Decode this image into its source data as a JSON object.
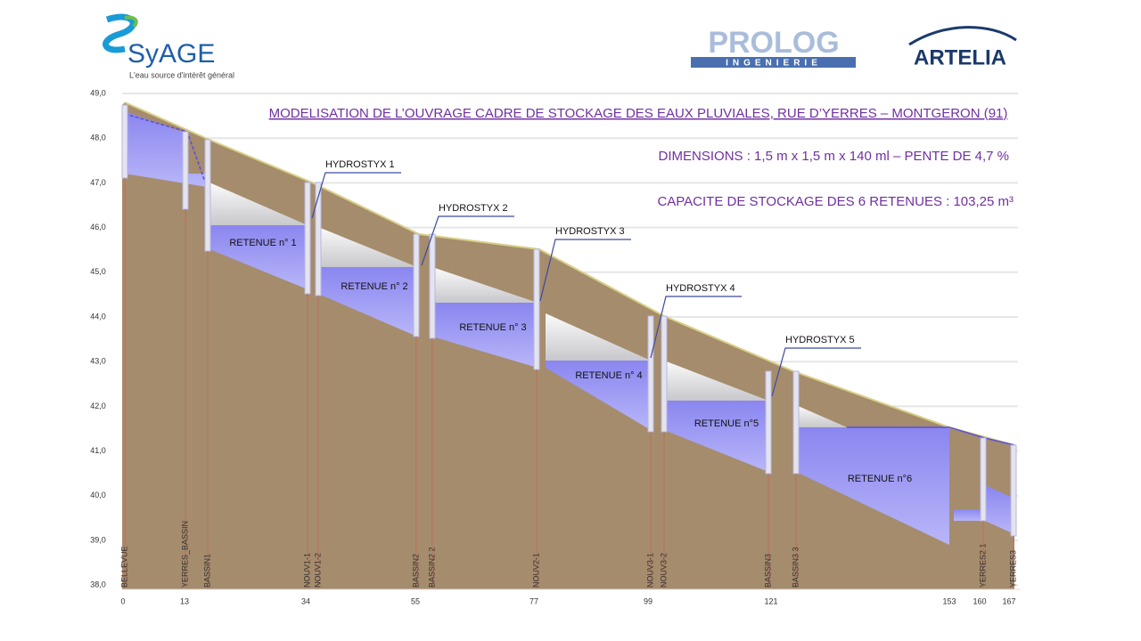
{
  "header": {
    "syage": {
      "name": "SyAGE",
      "tagline": "L'eau source d'intérêt général"
    },
    "prolog": {
      "name": "PROLOG",
      "sub": "INGENIERIE"
    },
    "artelia": {
      "name": "ARTELIA"
    }
  },
  "titles": [
    "MODELISATION DE L’OUVRAGE CADRE DE STOCKAGE DES EAUX PLUVIALES, RUE D’YERRES – MONTGERON (91)",
    "DIMENSIONS : 1,5 m x 1,5 m x 140 ml – PENTE DE 4,7 %",
    "CAPACITE DE STOCKAGE DES 6 RETENUES : 103,25 m³"
  ],
  "y_labels": [
    "49,0",
    "48,0",
    "47,0",
    "46,0",
    "45,0",
    "44,0",
    "43,0",
    "42,0",
    "41,0",
    "40,0",
    "39,0",
    "38,0"
  ],
  "x_labels": [
    "0",
    "13",
    "34",
    "55",
    "77",
    "99",
    "121",
    "153",
    "160",
    "167"
  ],
  "nodes": [
    "BELLEVUE",
    "YERRES_BASSIN",
    "BASSIN1",
    "NOUV1-1",
    "NOUV1-2",
    "BASSIN2",
    "BASSIN2 2",
    "NOUV2-1",
    "NOUV3-1",
    "NOUV3-2",
    "BASSIN3",
    "BASSIN3 3",
    "YERRES2 1",
    "YERRES3"
  ],
  "retenues": [
    "RETENUE n° 1",
    "RETENUE  n° 2",
    "RETENUE  n° 3",
    "RETENUE  n° 4",
    "RETENUE  n°5",
    "RETENUE  n°6"
  ],
  "hydrostyx": [
    "HYDROSTYX 1",
    "HYDROSTYX 2",
    "HYDROSTYX 3",
    "HYDROSTYX 4",
    "HYDROSTYX 5"
  ]
}
